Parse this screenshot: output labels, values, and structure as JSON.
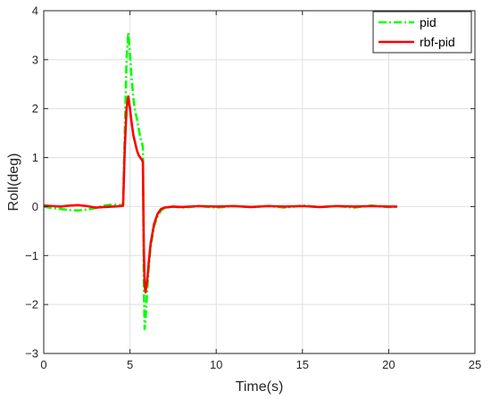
{
  "chart_data": {
    "type": "line",
    "xlabel": "Time(s)",
    "ylabel": "Roll(deg)",
    "xlim": [
      0,
      25
    ],
    "ylim": [
      -3,
      4
    ],
    "xticks": [
      "0",
      "5",
      "10",
      "15",
      "20",
      "25"
    ],
    "yticks": [
      "−3",
      "−2",
      "−1",
      "0",
      "1",
      "2",
      "3",
      "4"
    ],
    "grid": true,
    "legend_position": "top-right",
    "series": [
      {
        "name": "pid",
        "color": "#00ff00",
        "style": "dash-dot",
        "points": [
          [
            0.0,
            0.0
          ],
          [
            0.5,
            -0.03
          ],
          [
            1.0,
            -0.05
          ],
          [
            1.5,
            -0.07
          ],
          [
            2.0,
            -0.08
          ],
          [
            2.5,
            -0.06
          ],
          [
            3.0,
            -0.03
          ],
          [
            3.5,
            0.02
          ],
          [
            4.0,
            0.04
          ],
          [
            4.5,
            0.03
          ],
          [
            4.6,
            0.02
          ],
          [
            4.7,
            1.5
          ],
          [
            4.8,
            3.0
          ],
          [
            4.9,
            3.55
          ],
          [
            5.0,
            3.1
          ],
          [
            5.1,
            2.6
          ],
          [
            5.2,
            2.2
          ],
          [
            5.3,
            1.95
          ],
          [
            5.4,
            1.8
          ],
          [
            5.5,
            1.6
          ],
          [
            5.6,
            1.4
          ],
          [
            5.7,
            1.3
          ],
          [
            5.75,
            1.2
          ],
          [
            5.8,
            -1.5
          ],
          [
            5.85,
            -2.5
          ],
          [
            5.9,
            -2.3
          ],
          [
            6.0,
            -1.7
          ],
          [
            6.1,
            -1.2
          ],
          [
            6.2,
            -0.8
          ],
          [
            6.4,
            -0.4
          ],
          [
            6.6,
            -0.2
          ],
          [
            6.8,
            -0.08
          ],
          [
            7.0,
            -0.03
          ],
          [
            7.5,
            0.0
          ],
          [
            8.0,
            -0.02
          ],
          [
            9.0,
            0.01
          ],
          [
            10.0,
            -0.02
          ],
          [
            11.0,
            0.01
          ],
          [
            12.0,
            -0.01
          ],
          [
            13.0,
            0.01
          ],
          [
            14.0,
            -0.02
          ],
          [
            15.0,
            0.02
          ],
          [
            16.0,
            -0.01
          ],
          [
            17.0,
            0.01
          ],
          [
            18.0,
            -0.02
          ],
          [
            19.0,
            0.02
          ],
          [
            20.0,
            -0.01
          ],
          [
            20.5,
            0.0
          ]
        ]
      },
      {
        "name": "rbf-pid",
        "color": "#ff0000",
        "style": "solid",
        "points": [
          [
            0.0,
            0.02
          ],
          [
            0.5,
            0.01
          ],
          [
            1.0,
            0.0
          ],
          [
            1.5,
            0.02
          ],
          [
            2.0,
            0.03
          ],
          [
            2.5,
            0.01
          ],
          [
            3.0,
            -0.02
          ],
          [
            3.5,
            -0.01
          ],
          [
            4.0,
            0.0
          ],
          [
            4.5,
            0.01
          ],
          [
            4.6,
            0.02
          ],
          [
            4.7,
            1.2
          ],
          [
            4.8,
            2.0
          ],
          [
            4.9,
            2.25
          ],
          [
            5.0,
            2.0
          ],
          [
            5.1,
            1.7
          ],
          [
            5.2,
            1.45
          ],
          [
            5.3,
            1.3
          ],
          [
            5.4,
            1.15
          ],
          [
            5.5,
            1.05
          ],
          [
            5.6,
            1.0
          ],
          [
            5.7,
            0.95
          ],
          [
            5.75,
            0.9
          ],
          [
            5.8,
            -0.8
          ],
          [
            5.85,
            -1.6
          ],
          [
            5.9,
            -1.75
          ],
          [
            6.0,
            -1.5
          ],
          [
            6.1,
            -1.1
          ],
          [
            6.2,
            -0.75
          ],
          [
            6.4,
            -0.35
          ],
          [
            6.6,
            -0.15
          ],
          [
            6.8,
            -0.05
          ],
          [
            7.0,
            -0.02
          ],
          [
            7.5,
            0.0
          ],
          [
            8.0,
            -0.01
          ],
          [
            9.0,
            0.01
          ],
          [
            10.0,
            0.0
          ],
          [
            11.0,
            0.01
          ],
          [
            12.0,
            -0.01
          ],
          [
            13.0,
            0.01
          ],
          [
            14.0,
            0.0
          ],
          [
            15.0,
            0.01
          ],
          [
            16.0,
            -0.01
          ],
          [
            17.0,
            0.01
          ],
          [
            18.0,
            0.0
          ],
          [
            19.0,
            0.01
          ],
          [
            20.0,
            0.0
          ],
          [
            20.5,
            0.0
          ]
        ]
      }
    ]
  }
}
